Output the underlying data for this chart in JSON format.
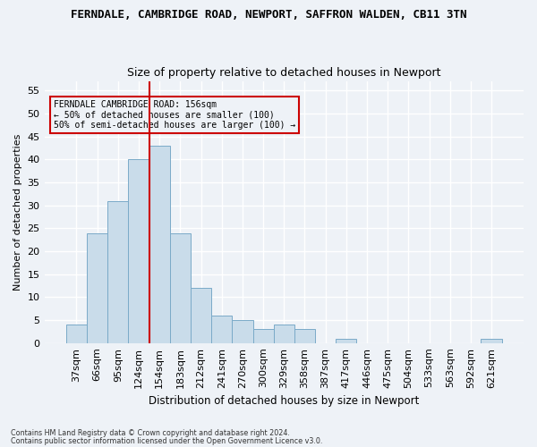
{
  "title1": "FERNDALE, CAMBRIDGE ROAD, NEWPORT, SAFFRON WALDEN, CB11 3TN",
  "title2": "Size of property relative to detached houses in Newport",
  "xlabel": "Distribution of detached houses by size in Newport",
  "ylabel": "Number of detached properties",
  "categories": [
    "37sqm",
    "66sqm",
    "95sqm",
    "124sqm",
    "154sqm",
    "183sqm",
    "212sqm",
    "241sqm",
    "270sqm",
    "300sqm",
    "329sqm",
    "358sqm",
    "387sqm",
    "417sqm",
    "446sqm",
    "475sqm",
    "504sqm",
    "533sqm",
    "563sqm",
    "592sqm",
    "621sqm"
  ],
  "values": [
    4,
    24,
    31,
    40,
    43,
    24,
    12,
    6,
    5,
    3,
    4,
    3,
    0,
    1,
    0,
    0,
    0,
    0,
    0,
    0,
    1
  ],
  "bar_color": "#c9dcea",
  "bar_edge_color": "#7aaac8",
  "vline_index": 3.5,
  "vline_color": "#cc0000",
  "ylim": [
    0,
    57
  ],
  "yticks": [
    0,
    5,
    10,
    15,
    20,
    25,
    30,
    35,
    40,
    45,
    50,
    55
  ],
  "annotation_text_line1": "FERNDALE CAMBRIDGE ROAD: 156sqm",
  "annotation_text_line2": "← 50% of detached houses are smaller (100)",
  "annotation_text_line3": "50% of semi-detached houses are larger (100) →",
  "annotation_box_color": "#cc0000",
  "footer1": "Contains HM Land Registry data © Crown copyright and database right 2024.",
  "footer2": "Contains public sector information licensed under the Open Government Licence v3.0.",
  "background_color": "#eef2f7",
  "grid_color": "#ffffff"
}
